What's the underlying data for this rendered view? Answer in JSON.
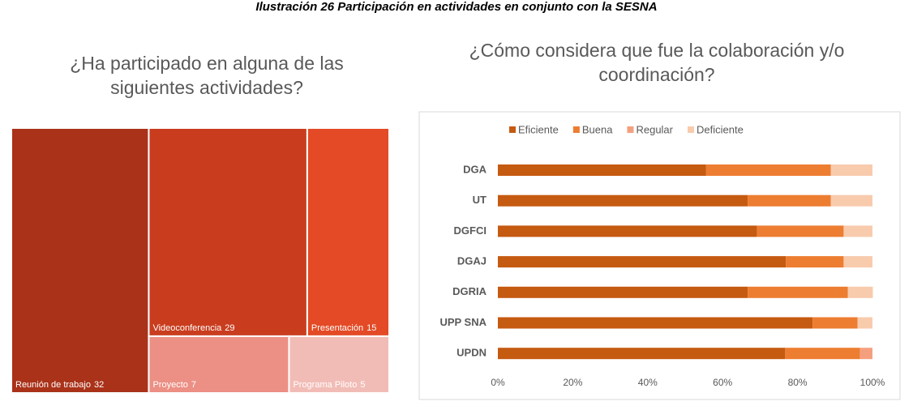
{
  "caption": "Ilustración 26 Participación en actividades en conjunto con la SESNA",
  "chart_data": [
    {
      "type": "treemap",
      "title": "¿Ha participado en alguna de las siguientes actividades?",
      "categories": [
        "Reunión de trabajo",
        "Videoconferencia",
        "Presentación",
        "Proyecto",
        "Programa Piloto"
      ],
      "values": [
        32,
        29,
        15,
        7,
        5
      ],
      "colors": [
        "#a93219",
        "#c93d1e",
        "#e34a25",
        "#ec8f84",
        "#f2bcb6"
      ]
    },
    {
      "type": "stacked_bar_horizontal",
      "title": "¿Cómo considera que fue la colaboración y/o coordinación?",
      "categories": [
        "DGA",
        "UT",
        "DGFCI",
        "DGAJ",
        "DGRIA",
        "UPP SNA",
        "UPDN"
      ],
      "series": [
        {
          "name": "Eficiente",
          "color": "#c55a11",
          "values": [
            55.6,
            66.7,
            69.2,
            76.9,
            66.7,
            84,
            76.7
          ]
        },
        {
          "name": "Buena",
          "color": "#ed7d31",
          "values": [
            33.3,
            22.2,
            23.1,
            15.4,
            26.7,
            12,
            20
          ]
        },
        {
          "name": "Regular",
          "color": "#f4a07f",
          "values": [
            0,
            0,
            0,
            0,
            0,
            0,
            3.3
          ]
        },
        {
          "name": "Deficiente",
          "color": "#f8cbad",
          "values": [
            11.1,
            11.1,
            7.7,
            7.7,
            6.7,
            4,
            0
          ]
        }
      ],
      "xlim": [
        0,
        100
      ],
      "xticks": [
        {
          "value": 0,
          "label": "0%"
        },
        {
          "value": 20,
          "label": "20%"
        },
        {
          "value": 40,
          "label": "40%"
        },
        {
          "value": 60,
          "label": "60%"
        },
        {
          "value": 80,
          "label": "80%"
        },
        {
          "value": 100,
          "label": "100%"
        }
      ],
      "legend": "top",
      "grid": false
    }
  ]
}
